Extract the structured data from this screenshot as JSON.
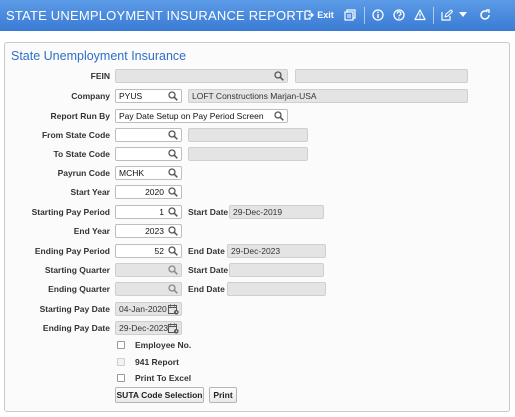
{
  "window": {
    "title": "STATE UNEMPLOYMENT INSURANCE REPORT"
  },
  "toolbar": {
    "exit_label": "Exit",
    "icons": [
      "exit-icon",
      "report-icon",
      "info-icon",
      "help-icon",
      "warning-icon",
      "edit-icon",
      "dropdown-icon",
      "refresh-icon"
    ]
  },
  "form": {
    "heading": "State Unemployment Insurance",
    "fein": {
      "label": "FEIN",
      "value": "",
      "description": ""
    },
    "company": {
      "label": "Company",
      "value": "PYUS",
      "description": "LOFT Constructions Marjan-USA"
    },
    "report_run_by": {
      "label": "Report Run By",
      "value": "Pay Date Setup on Pay Period Screen"
    },
    "from_state_code": {
      "label": "From State Code",
      "value": "",
      "description": ""
    },
    "to_state_code": {
      "label": "To State Code",
      "value": "",
      "description": ""
    },
    "payrun_code": {
      "label": "Payrun Code",
      "value": "MCHK"
    },
    "start_year": {
      "label": "Start Year",
      "value": "2020"
    },
    "starting_pay_period": {
      "label": "Starting Pay Period",
      "value": "1",
      "date_label": "Start Date",
      "date_value": "29-Dec-2019"
    },
    "end_year": {
      "label": "End Year",
      "value": "2023"
    },
    "ending_pay_period": {
      "label": "Ending Pay Period",
      "value": "52",
      "date_label": "End Date",
      "date_value": "29-Dec-2023"
    },
    "starting_quarter": {
      "label": "Starting Quarter",
      "value": "",
      "date_label": "Start Date",
      "date_value": ""
    },
    "ending_quarter": {
      "label": "Ending Quarter",
      "value": "",
      "date_label": "End Date",
      "date_value": ""
    },
    "starting_pay_date": {
      "label": "Starting Pay Date",
      "value": "04-Jan-2020"
    },
    "ending_pay_date": {
      "label": "Ending Pay Date",
      "value": "29-Dec-2023"
    },
    "checkboxes": {
      "employee_no": {
        "label": "Employee No.",
        "checked": false
      },
      "report_941": {
        "label": "941 Report",
        "checked": false
      },
      "print_to_excel": {
        "label": "Print To Excel",
        "checked": false
      }
    },
    "buttons": {
      "suta_code_selection": "SUTA Code Selection",
      "print": "Print"
    }
  },
  "colors": {
    "titlebar": "#4a8ae0",
    "heading": "#2e6fc7",
    "disabled_field": "#e4e4e4"
  }
}
